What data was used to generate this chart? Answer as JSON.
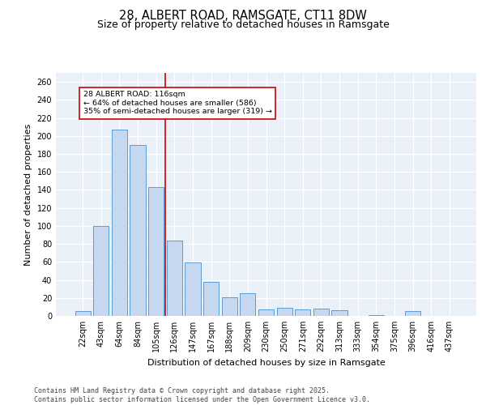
{
  "title_line1": "28, ALBERT ROAD, RAMSGATE, CT11 8DW",
  "title_line2": "Size of property relative to detached houses in Ramsgate",
  "xlabel": "Distribution of detached houses by size in Ramsgate",
  "ylabel": "Number of detached properties",
  "categories": [
    "22sqm",
    "43sqm",
    "64sqm",
    "84sqm",
    "105sqm",
    "126sqm",
    "147sqm",
    "167sqm",
    "188sqm",
    "209sqm",
    "230sqm",
    "250sqm",
    "271sqm",
    "292sqm",
    "313sqm",
    "333sqm",
    "354sqm",
    "375sqm",
    "396sqm",
    "416sqm",
    "437sqm"
  ],
  "values": [
    5,
    100,
    207,
    190,
    143,
    84,
    59,
    38,
    21,
    25,
    7,
    9,
    7,
    8,
    6,
    0,
    1,
    0,
    5,
    0,
    0
  ],
  "bar_color": "#c5d8f0",
  "bar_edge_color": "#5b9bd5",
  "vline_x": 4.5,
  "vline_color": "#cc0000",
  "annotation_text": "28 ALBERT ROAD: 116sqm\n← 64% of detached houses are smaller (586)\n35% of semi-detached houses are larger (319) →",
  "annotation_box_color": "white",
  "annotation_box_edge": "#cc0000",
  "ylim": [
    0,
    270
  ],
  "yticks": [
    0,
    20,
    40,
    60,
    80,
    100,
    120,
    140,
    160,
    180,
    200,
    220,
    240,
    260
  ],
  "background_color": "#eaf0f8",
  "footer_text": "Contains HM Land Registry data © Crown copyright and database right 2025.\nContains public sector information licensed under the Open Government Licence v3.0.",
  "title_fontsize": 10.5,
  "subtitle_fontsize": 9,
  "axis_label_fontsize": 8,
  "tick_fontsize": 7,
  "footer_fontsize": 6
}
